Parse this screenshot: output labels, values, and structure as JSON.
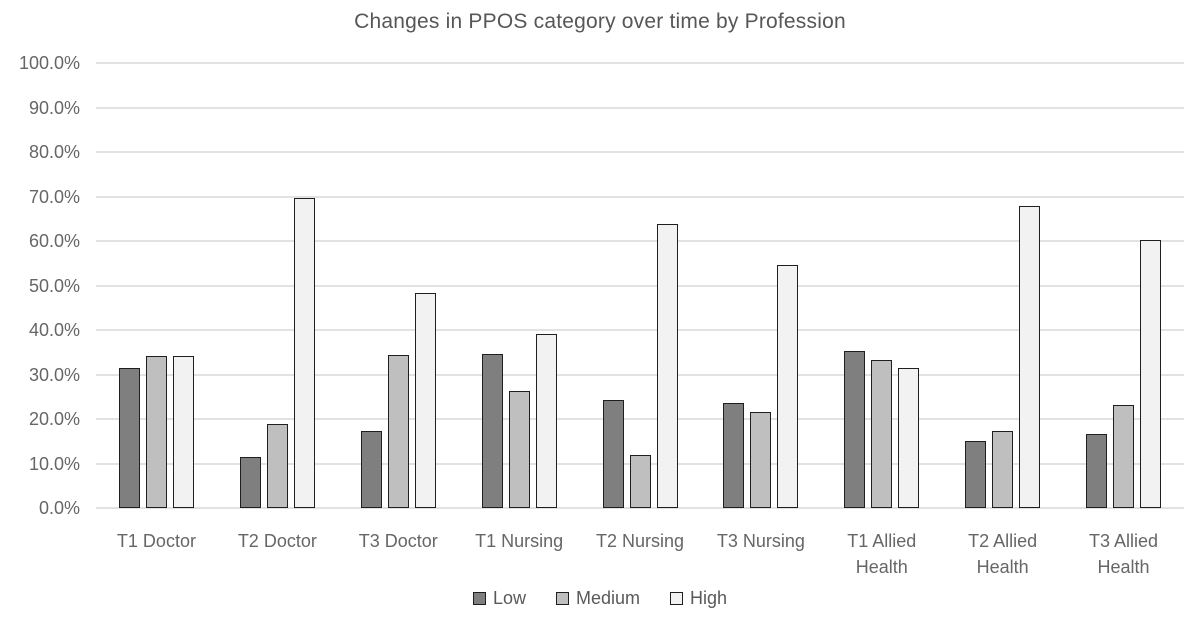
{
  "chart_data": {
    "type": "bar",
    "title": "Changes in PPOS category over time by Profession",
    "categories": [
      "T1 Doctor",
      "T2 Doctor",
      "T3 Doctor",
      "T1 Nursing",
      "T2 Nursing",
      "T3 Nursing",
      "T1 Allied Health",
      "T2 Allied Health",
      "T3 Allied Health"
    ],
    "series": [
      {
        "name": "Low",
        "color": "#7f7f7f",
        "values": [
          31.5,
          11.4,
          17.3,
          34.5,
          24.3,
          23.7,
          35.2,
          15.0,
          16.6
        ]
      },
      {
        "name": "Medium",
        "color": "#bfbfbf",
        "values": [
          34.2,
          18.9,
          34.4,
          26.4,
          11.9,
          21.6,
          33.3,
          17.2,
          23.1
        ]
      },
      {
        "name": "High",
        "color": "#f2f2f2",
        "values": [
          34.2,
          69.7,
          48.3,
          39.1,
          63.8,
          54.7,
          31.5,
          67.8,
          60.3
        ]
      }
    ],
    "xlabel": "",
    "ylabel": "",
    "ylim": [
      0,
      100
    ],
    "ytick_step": 10,
    "ytick_labels": [
      "0.0%",
      "10.0%",
      "20.0%",
      "30.0%",
      "40.0%",
      "50.0%",
      "60.0%",
      "70.0%",
      "80.0%",
      "90.0%",
      "100.0%"
    ],
    "grid": true,
    "legend_position": "bottom",
    "colors": {
      "bar_border": "#1f1f1f",
      "gridline": "#e2e2e2",
      "axis_text": "#666666",
      "title_text": "#575757",
      "background": "#ffffff"
    }
  }
}
